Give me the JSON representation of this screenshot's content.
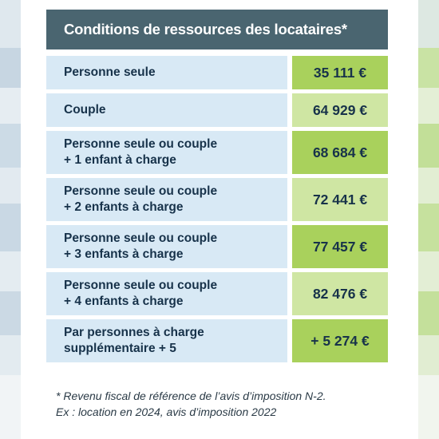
{
  "table": {
    "title": "Conditions de ressources des locataires*",
    "rows": [
      {
        "line1": "Personne seule",
        "line2": "",
        "value": "35 111 €"
      },
      {
        "line1": "Couple",
        "line2": "",
        "value": "64 929 €"
      },
      {
        "line1": "Personne seule ou couple",
        "line2": "+ 1 enfant à charge",
        "value": "68 684 €"
      },
      {
        "line1": "Personne seule ou couple",
        "line2": "+ 2 enfants à charge",
        "value": "72 441 €"
      },
      {
        "line1": "Personne seule ou couple",
        "line2": "+ 3 enfants à charge",
        "value": "77 457 €"
      },
      {
        "line1": "Personne seule ou couple",
        "line2": "+ 4 enfants à charge",
        "value": "82 476 €"
      },
      {
        "line1": "Par personnes à charge",
        "line2": "supplémentaire + 5",
        "value": "+ 5 274 €"
      }
    ]
  },
  "footnote": {
    "line1": "* Revenu fiscal de référence de l’avis d’imposition N-2.",
    "line2": "Ex : location en 2024, avis d’imposition 2022"
  },
  "colors": {
    "header_bg": "#4a6570",
    "label_bg": "#d8e9f5",
    "value_bg_dark": "#a9d15c",
    "value_bg_light": "#cfe6a3",
    "text": "#17324a"
  }
}
